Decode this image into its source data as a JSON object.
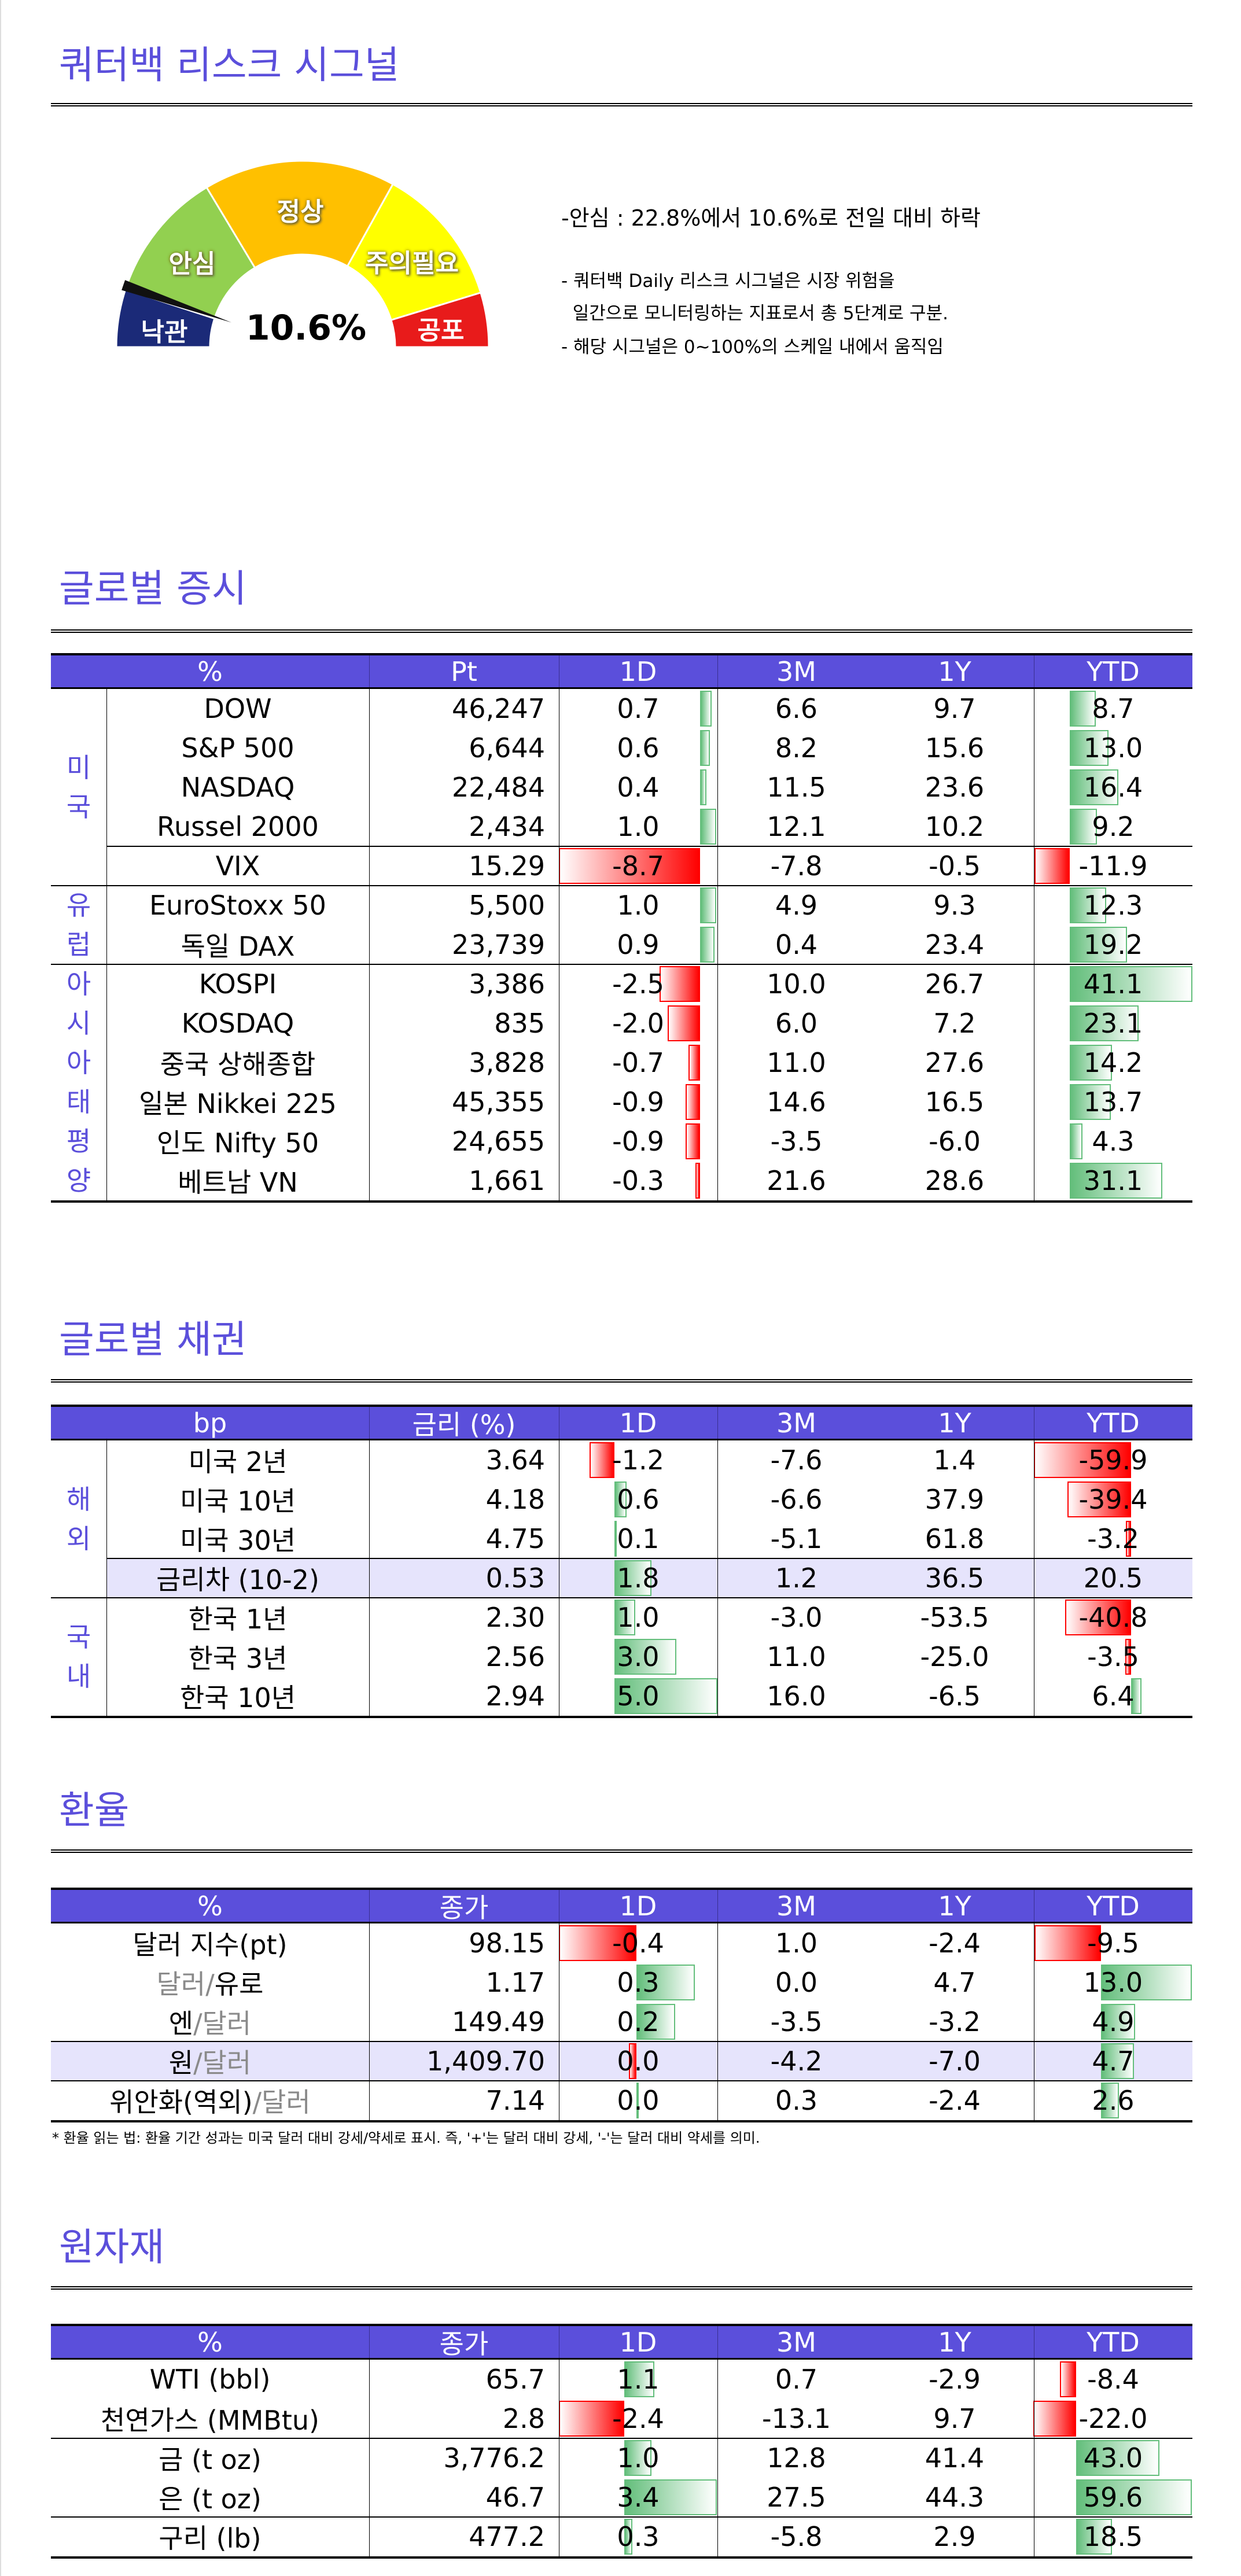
{
  "risk_signal": {
    "title": "쿼터백 리스크 시그널",
    "gauge": {
      "value_label": "10.6%",
      "value_percent": 10.6,
      "segments": [
        {
          "label": "낙관",
          "color": "#1b2a78"
        },
        {
          "label": "안심",
          "color": "#92d050"
        },
        {
          "label": "정상",
          "color": "#ffc000"
        },
        {
          "label": "주의필요",
          "color": "#ffff00"
        },
        {
          "label": "공포",
          "color": "#e81b1b"
        }
      ]
    },
    "summary": "-안심 : 22.8%에서 10.6%로 전일 대비 하락",
    "notes": [
      "- 쿼터백 Daily 리스크 시그널은 시장 위험을",
      "  일간으로 모니터링하는 지표로서 총 5단계로 구분.",
      "- 해당 시그널은 0~100%의 스케일 내에서 움직임"
    ]
  },
  "colors": {
    "accent": "#5b4fdb",
    "highlight_row": "#e6e4fc",
    "positive_bar": "#63be7b",
    "negative_bar": "#ff0000"
  },
  "tables": [
    {
      "id": "equity",
      "title": "글로벌 증시",
      "header": [
        "%",
        "Pt",
        "1D",
        "3M",
        "1Y",
        "YTD"
      ],
      "groups": [
        {
          "label": "미국",
          "rows": [
            {
              "name": "DOW",
              "value": "46,247",
              "d1": "0.7",
              "m3": "6.6",
              "y1": "9.7",
              "ytd": "8.7"
            },
            {
              "name": "S&P 500",
              "value": "6,644",
              "d1": "0.6",
              "m3": "8.2",
              "y1": "15.6",
              "ytd": "13.0"
            },
            {
              "name": "NASDAQ",
              "value": "22,484",
              "d1": "0.4",
              "m3": "11.5",
              "y1": "23.6",
              "ytd": "16.4"
            },
            {
              "name": "Russel 2000",
              "value": "2,434",
              "d1": "1.0",
              "m3": "12.1",
              "y1": "10.2",
              "ytd": "9.2"
            },
            {
              "name": "VIX",
              "value": "15.29",
              "d1": "-8.7",
              "m3": "-7.8",
              "y1": "-0.5",
              "ytd": "-11.9",
              "split": true
            }
          ]
        },
        {
          "label": "유럽",
          "rows": [
            {
              "name": "EuroStoxx 50",
              "value": "5,500",
              "d1": "1.0",
              "m3": "4.9",
              "y1": "9.3",
              "ytd": "12.3"
            },
            {
              "name": "독일 DAX",
              "value": "23,739",
              "d1": "0.9",
              "m3": "0.4",
              "y1": "23.4",
              "ytd": "19.2"
            }
          ]
        },
        {
          "label": "아시아태평양",
          "rows": [
            {
              "name": "KOSPI",
              "value": "3,386",
              "d1": "-2.5",
              "m3": "10.0",
              "y1": "26.7",
              "ytd": "41.1"
            },
            {
              "name": "KOSDAQ",
              "value": "835",
              "d1": "-2.0",
              "m3": "6.0",
              "y1": "7.2",
              "ytd": "23.1"
            },
            {
              "name": "중국 상해종합",
              "value": "3,828",
              "d1": "-0.7",
              "m3": "11.0",
              "y1": "27.6",
              "ytd": "14.2"
            },
            {
              "name": "일본 Nikkei 225",
              "value": "45,355",
              "d1": "-0.9",
              "m3": "14.6",
              "y1": "16.5",
              "ytd": "13.7"
            },
            {
              "name": "인도 Nifty 50",
              "value": "24,655",
              "d1": "-0.9",
              "m3": "-3.5",
              "y1": "-6.0",
              "ytd": "4.3"
            },
            {
              "name": "베트남 VN",
              "value": "1,661",
              "d1": "-0.3",
              "m3": "21.6",
              "y1": "28.6",
              "ytd": "31.1"
            }
          ]
        }
      ]
    },
    {
      "id": "bond",
      "title": "글로벌 채권",
      "header": [
        "bp",
        "금리 (%)",
        "1D",
        "3M",
        "1Y",
        "YTD"
      ],
      "groups": [
        {
          "label": "해외",
          "rows": [
            {
              "name": "미국 2년",
              "value": "3.64",
              "d1": "-1.2",
              "m3": "-7.6",
              "y1": "1.4",
              "ytd": "-59.9"
            },
            {
              "name": "미국 10년",
              "value": "4.18",
              "d1": "0.6",
              "m3": "-6.6",
              "y1": "37.9",
              "ytd": "-39.4"
            },
            {
              "name": "미국 30년",
              "value": "4.75",
              "d1": "0.1",
              "m3": "-5.1",
              "y1": "61.8",
              "ytd": "-3.2"
            },
            {
              "name": "금리차 (10-2)",
              "value": "0.53",
              "d1": "1.8",
              "m3": "1.2",
              "y1": "36.5",
              "ytd": "20.5",
              "split": true,
              "highlight": true,
              "no_ytd_bar": true
            }
          ]
        },
        {
          "label": "국내",
          "rows": [
            {
              "name": "한국 1년",
              "value": "2.30",
              "d1": "1.0",
              "m3": "-3.0",
              "y1": "-53.5",
              "ytd": "-40.8"
            },
            {
              "name": "한국 3년",
              "value": "2.56",
              "d1": "3.0",
              "m3": "11.0",
              "y1": "-25.0",
              "ytd": "-3.5"
            },
            {
              "name": "한국 10년",
              "value": "2.94",
              "d1": "5.0",
              "m3": "16.0",
              "y1": "-6.5",
              "ytd": "6.4"
            }
          ]
        }
      ]
    },
    {
      "id": "fx",
      "title": "환율",
      "header": [
        "%",
        "종가",
        "1D",
        "3M",
        "1Y",
        "YTD"
      ],
      "footnote": "* 환율 읽는 법: 환율 기간 성과는 미국 달러 대비 강세/약세로 표시. 즉, '+'는 달러 대비 강세, '-'는 달러 대비 약세를 의미.",
      "groups": [
        {
          "label": "",
          "rows": [
            {
              "name_parts": [
                {
                  "text": "달러 지수(pt)",
                  "gray": false
                }
              ],
              "value": "98.15",
              "d1": "-0.4",
              "m3": "1.0",
              "y1": "-2.4",
              "ytd": "-9.5"
            },
            {
              "name_parts": [
                {
                  "text": "달러/",
                  "gray": true
                },
                {
                  "text": "유로",
                  "gray": false
                }
              ],
              "value": "1.17",
              "d1": "0.3",
              "m3": "0.0",
              "y1": "4.7",
              "ytd": "13.0"
            },
            {
              "name_parts": [
                {
                  "text": "엔",
                  "gray": false
                },
                {
                  "text": "/달러",
                  "gray": true
                }
              ],
              "value": "149.49",
              "d1": "0.2",
              "m3": "-3.5",
              "y1": "-3.2",
              "ytd": "4.9"
            },
            {
              "name_parts": [
                {
                  "text": "원",
                  "gray": false
                },
                {
                  "text": "/달러",
                  "gray": true
                }
              ],
              "value": "1,409.70",
              "d1": "0.0",
              "d1_bar": -0.04,
              "m3": "-4.2",
              "y1": "-7.0",
              "ytd": "4.7",
              "split": true,
              "highlight": true
            },
            {
              "name_parts": [
                {
                  "text": "위안화(역외)",
                  "gray": false
                },
                {
                  "text": "/달러",
                  "gray": true
                }
              ],
              "value": "7.14",
              "d1": "0.0",
              "d1_bar": 0.01,
              "m3": "0.3",
              "y1": "-2.4",
              "ytd": "2.6",
              "split": true
            }
          ]
        }
      ]
    },
    {
      "id": "commodity",
      "title": "원자재",
      "header": [
        "%",
        "종가",
        "1D",
        "3M",
        "1Y",
        "YTD"
      ],
      "groups": [
        {
          "label": "",
          "rows": [
            {
              "name": "WTI (bbl)",
              "value": "65.7",
              "d1": "1.1",
              "m3": "0.7",
              "y1": "-2.9",
              "ytd": "-8.4"
            },
            {
              "name": "천연가스 (MMBtu)",
              "value": "2.8",
              "d1": "-2.4",
              "m3": "-13.1",
              "y1": "9.7",
              "ytd": "-22.0"
            },
            {
              "name": "금 (t oz)",
              "value": "3,776.2",
              "d1": "1.0",
              "m3": "12.8",
              "y1": "41.4",
              "ytd": "43.0",
              "split": true
            },
            {
              "name": "은 (t oz)",
              "value": "46.7",
              "d1": "3.4",
              "m3": "27.5",
              "y1": "44.3",
              "ytd": "59.6"
            },
            {
              "name": "구리 (lb)",
              "value": "477.2",
              "d1": "0.3",
              "m3": "-5.8",
              "y1": "2.9",
              "ytd": "18.5",
              "split": true
            }
          ]
        }
      ]
    }
  ]
}
